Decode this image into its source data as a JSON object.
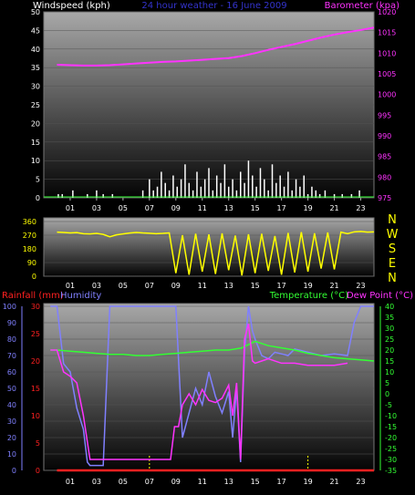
{
  "chart_data": [
    {
      "type": "line",
      "title": "24 hour weather - 16 June 2009",
      "left_label": "Windspeed (kph)",
      "right_label": "Barometer (kpa)",
      "x_ticks": [
        "01",
        "03",
        "05",
        "07",
        "09",
        "11",
        "13",
        "15",
        "17",
        "19",
        "21",
        "23"
      ],
      "y_left_ticks": [
        "0",
        "5",
        "10",
        "15",
        "20",
        "25",
        "30",
        "35",
        "40",
        "45",
        "50"
      ],
      "y_right_ticks": [
        "975",
        "980",
        "985",
        "990",
        "995",
        "1000",
        "1005",
        "1010",
        "1015",
        "1020"
      ],
      "ylim_left": [
        0,
        50
      ],
      "ylim_right": [
        975,
        1020
      ],
      "series": [
        {
          "name": "Barometer (kpa)",
          "axis": "right",
          "color": "#ff33ff",
          "x": [
            0,
            1,
            2,
            3,
            4,
            5,
            6,
            7,
            8,
            9,
            10,
            11,
            12,
            13,
            14,
            15,
            16,
            17,
            18,
            19,
            20,
            21,
            22,
            23,
            24
          ],
          "values": [
            1007.2,
            1007.1,
            1007.0,
            1007.0,
            1007.1,
            1007.3,
            1007.5,
            1007.7,
            1007.9,
            1008.0,
            1008.2,
            1008.4,
            1008.6,
            1008.8,
            1009.3,
            1010.0,
            1010.8,
            1011.5,
            1012.2,
            1013.0,
            1013.8,
            1014.5,
            1015.1,
            1015.6,
            1016.2
          ]
        },
        {
          "name": "Windspeed (kph)",
          "axis": "left",
          "color": "#ffffff",
          "kind": "bars",
          "x": [
            0.1,
            0.4,
            1.2,
            2.3,
            3.0,
            3.5,
            4.2,
            6.5,
            7.0,
            7.3,
            7.6,
            7.9,
            8.2,
            8.5,
            8.8,
            9.1,
            9.4,
            9.7,
            10.0,
            10.3,
            10.6,
            10.9,
            11.2,
            11.5,
            11.8,
            12.1,
            12.4,
            12.7,
            13.0,
            13.3,
            13.6,
            13.9,
            14.2,
            14.5,
            14.8,
            15.1,
            15.4,
            15.7,
            16.0,
            16.3,
            16.6,
            16.9,
            17.2,
            17.5,
            17.8,
            18.1,
            18.4,
            18.7,
            19.0,
            19.3,
            19.6,
            19.9,
            20.3,
            21.0,
            21.6,
            22.3,
            22.9
          ],
          "values": [
            1,
            1,
            2,
            1,
            2,
            1,
            1,
            2,
            5,
            2,
            3,
            7,
            4,
            2,
            6,
            3,
            5,
            9,
            4,
            2,
            7,
            3,
            5,
            8,
            2,
            6,
            4,
            9,
            3,
            5,
            2,
            7,
            4,
            10,
            6,
            3,
            8,
            5,
            2,
            9,
            4,
            6,
            3,
            7,
            2,
            5,
            3,
            6,
            1,
            3,
            2,
            1,
            2,
            1,
            1,
            1,
            2
          ]
        }
      ]
    },
    {
      "type": "line",
      "left_label": "",
      "direction_labels": [
        "N",
        "W",
        "S",
        "E",
        "N"
      ],
      "x_ticks": [
        "01",
        "03",
        "05",
        "07",
        "09",
        "11",
        "13",
        "15",
        "17",
        "19",
        "21",
        "23"
      ],
      "y_ticks": [
        "360",
        "270",
        "180",
        "90",
        "0"
      ],
      "ylim": [
        0,
        360
      ],
      "series": [
        {
          "name": "Wind direction",
          "color": "#ffff00",
          "x": [
            0,
            0.5,
            1,
            1.5,
            2,
            2.5,
            3,
            3.5,
            4,
            4.5,
            5,
            5.5,
            6,
            6.5,
            7,
            7.5,
            8,
            8.5,
            9,
            9.5,
            10,
            10.5,
            11,
            11.5,
            12,
            12.5,
            13,
            13.5,
            14,
            14.5,
            15,
            15.5,
            16,
            16.5,
            17,
            17.5,
            18,
            18.5,
            19,
            19.5,
            20,
            20.5,
            21,
            21.5,
            22,
            22.5,
            23,
            23.5,
            24
          ],
          "values": [
            290,
            288,
            285,
            287,
            280,
            278,
            282,
            275,
            260,
            272,
            278,
            284,
            288,
            285,
            283,
            280,
            282,
            285,
            20,
            270,
            10,
            280,
            30,
            275,
            15,
            282,
            40,
            268,
            5,
            276,
            20,
            280,
            35,
            265,
            10,
            285,
            25,
            290,
            30,
            283,
            50,
            288,
            45,
            290,
            280,
            292,
            295,
            290,
            292
          ]
        }
      ]
    },
    {
      "type": "line",
      "legend": [
        "Rainfall (mm)",
        "Humidity",
        "Temperature (°C)",
        "Dew Point (°C)"
      ],
      "x_ticks": [
        "01",
        "03",
        "05",
        "07",
        "09",
        "11",
        "13",
        "15",
        "17",
        "19",
        "21",
        "23"
      ],
      "humidity_ticks": [
        "0",
        "10",
        "20",
        "30",
        "40",
        "50",
        "60",
        "70",
        "80",
        "90",
        "100"
      ],
      "rain_ticks": [
        "0",
        "5",
        "10",
        "15",
        "20",
        "25",
        "30"
      ],
      "temp_ticks": [
        "-35",
        "-30",
        "-25",
        "-20",
        "-15",
        "-10",
        "-5",
        "0",
        "5",
        "10",
        "15",
        "20",
        "25",
        "30",
        "35",
        "40"
      ],
      "ylim_humidity": [
        0,
        100
      ],
      "ylim_rain": [
        0,
        30
      ],
      "ylim_temp": [
        -35,
        40
      ],
      "series": [
        {
          "name": "Rainfall (mm)",
          "axis": "rain",
          "color": "#ff2020",
          "x": [
            0,
            24
          ],
          "values": [
            0,
            0
          ]
        },
        {
          "name": "Humidity",
          "axis": "humidity",
          "color": "#8080ff",
          "x": [
            -0.5,
            0,
            0.5,
            1,
            1.5,
            2,
            2.3,
            2.5,
            2.8,
            3,
            3.5,
            4,
            5,
            6,
            7,
            8,
            8.5,
            9,
            9.5,
            10,
            10.5,
            11,
            11.5,
            12,
            12.5,
            13,
            13.3,
            13.6,
            13.9,
            14.2,
            14.5,
            14.8,
            15,
            15.5,
            16,
            16.5,
            17,
            17.5,
            18,
            19,
            20,
            21,
            22,
            22.5,
            23,
            24
          ],
          "values": [
            100,
            100,
            65,
            60,
            38,
            25,
            5,
            3,
            3,
            3,
            3,
            100,
            100,
            100,
            100,
            100,
            100,
            100,
            20,
            35,
            50,
            40,
            60,
            45,
            35,
            48,
            20,
            50,
            5,
            72,
            100,
            85,
            80,
            70,
            68,
            72,
            71,
            70,
            74,
            72,
            70,
            71,
            70,
            90,
            100,
            100
          ]
        },
        {
          "name": "Temperature (°C)",
          "axis": "temp",
          "color": "#33ff33",
          "x": [
            -0.5,
            0,
            1,
            2,
            3,
            4,
            5,
            6,
            7,
            8,
            9,
            10,
            11,
            12,
            13,
            14,
            15,
            16,
            17,
            18,
            19,
            20,
            21,
            22,
            23,
            24
          ],
          "values": [
            20,
            20,
            19.5,
            19,
            18.5,
            18,
            18,
            17.5,
            17.5,
            18,
            18.5,
            19,
            19.5,
            20,
            20,
            21,
            24,
            22,
            21,
            20,
            18.5,
            17.5,
            16.5,
            16,
            15.5,
            15
          ]
        },
        {
          "name": "Dew Point (°C)",
          "axis": "temp",
          "color": "#ff33ff",
          "x": [
            -0.5,
            0,
            0.5,
            1,
            1.5,
            2,
            2.5,
            2.8,
            3,
            8.6,
            8.9,
            9.2,
            9.5,
            10,
            10.5,
            11,
            11.5,
            12,
            12.5,
            13,
            13.3,
            13.6,
            13.9,
            14.2,
            14.5,
            14.8,
            15,
            15.5,
            16,
            17,
            18,
            19,
            20,
            21,
            22
          ],
          "values": [
            20,
            20,
            10,
            8,
            5,
            -10,
            -30,
            -30,
            -30,
            -30,
            -15,
            -15,
            -5,
            0,
            -5,
            2,
            -3,
            -4,
            -2,
            4,
            -10,
            5,
            -30,
            25,
            32,
            15,
            14,
            15,
            16,
            14,
            14,
            13,
            13,
            13,
            14
          ]
        }
      ]
    }
  ]
}
